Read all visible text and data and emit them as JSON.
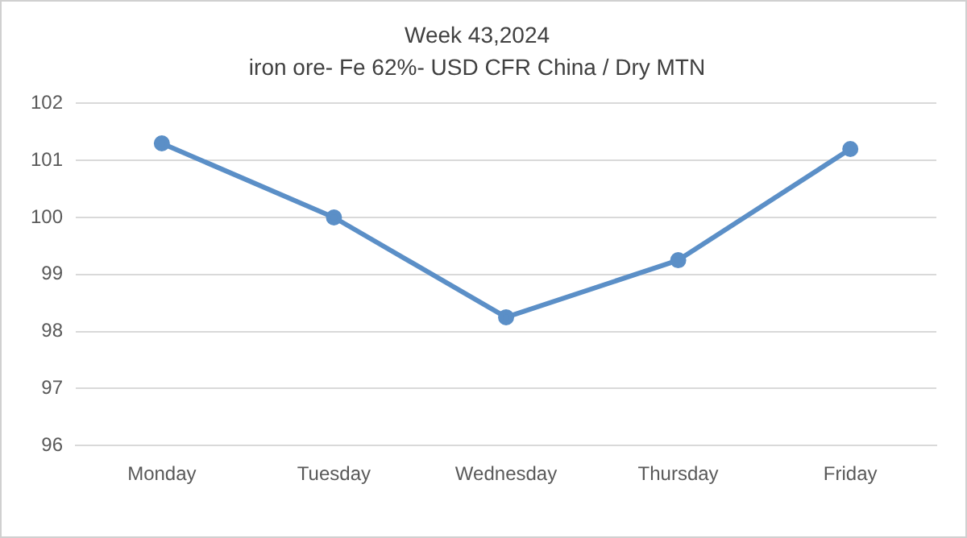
{
  "chart_data": {
    "type": "line",
    "title": "Week 43,2024",
    "subtitle": "iron ore- Fe 62%- USD CFR China / Dry MTN",
    "categories": [
      "Monday",
      "Tuesday",
      "Wednesday",
      "Thursday",
      "Friday"
    ],
    "series": [
      {
        "color": "#5b8fc7",
        "values": [
          101.3,
          100,
          98.25,
          99.25,
          101.2
        ]
      }
    ],
    "ylim": [
      96,
      102
    ],
    "yticks": [
      96,
      97,
      98,
      99,
      100,
      101,
      102
    ],
    "grid": "y",
    "marker": "circle",
    "line_style": "solid",
    "legend": false
  }
}
